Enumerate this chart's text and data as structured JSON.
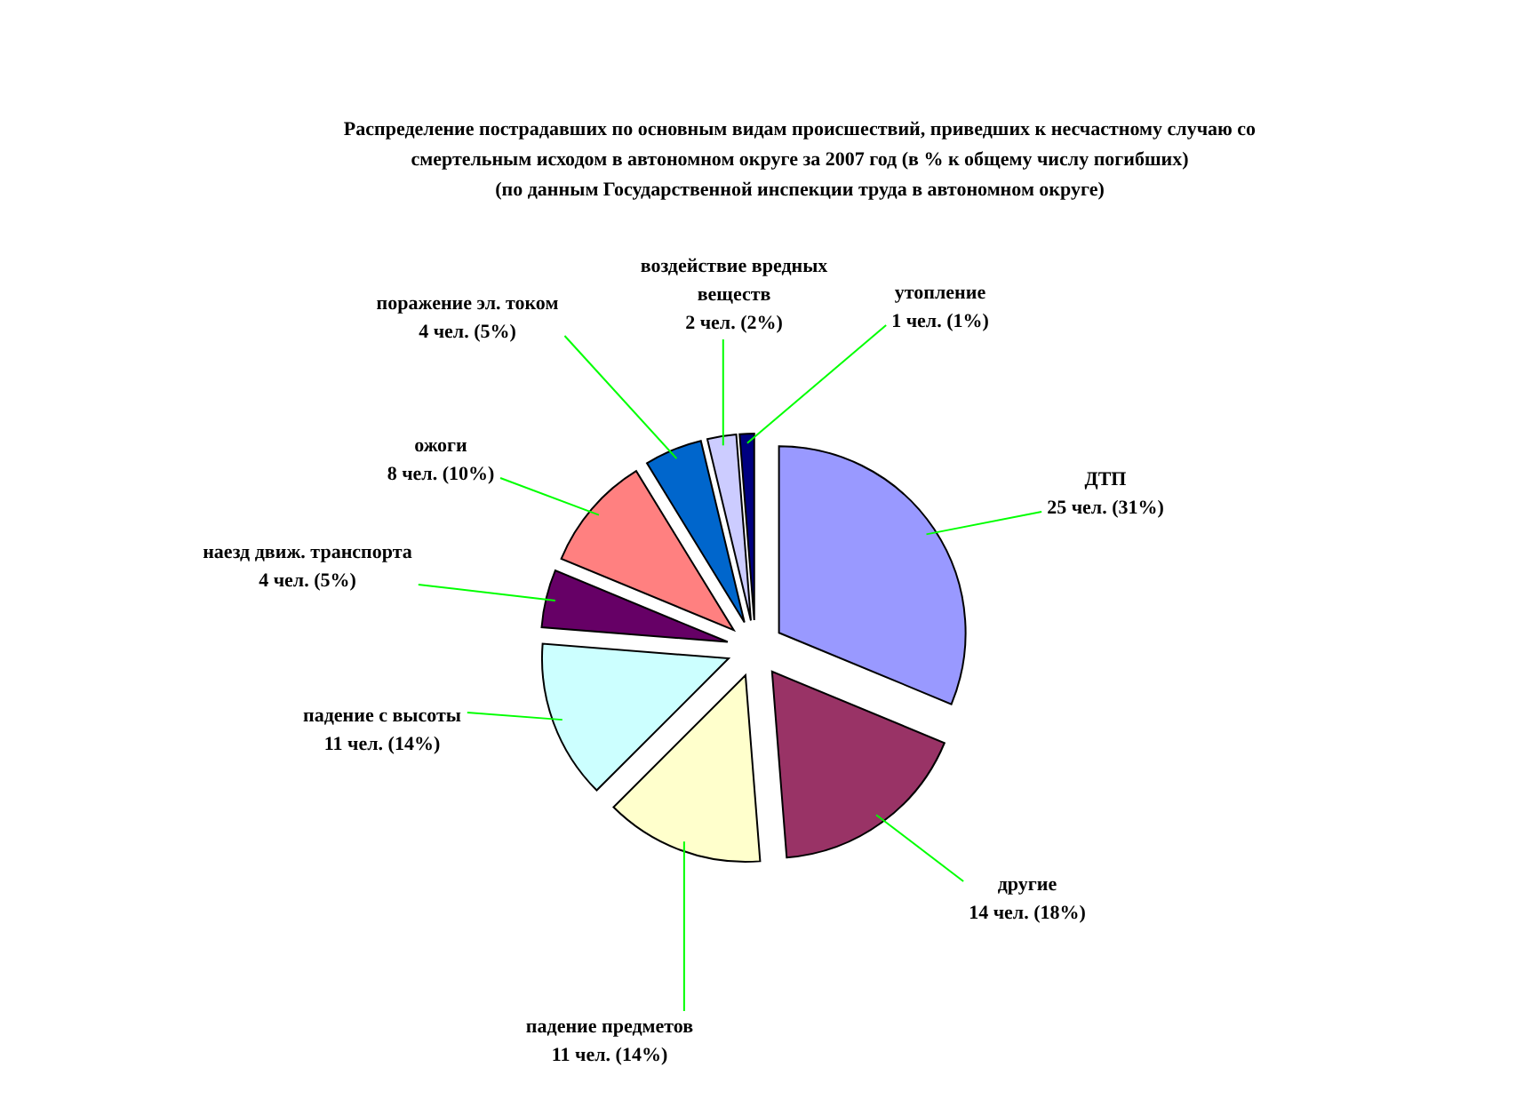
{
  "chart_data": {
    "type": "pie",
    "title": "Распределение пострадавших по основным видам происшествий,  приведших к несчастному случаю со\nсмертельным исходом в автономном округе за 2007 год  (в % к общему числу погибших)\n(по данным Государственной инспекции труда в автономном округе)",
    "categories": [
      "ДТП",
      "другие",
      "падение предметов",
      "падение с высоты",
      "наезд движ. транспорта",
      "ожоги",
      "поражение эл. током",
      "воздействие вредных\nвеществ",
      "утопление"
    ],
    "values": [
      25,
      14,
      11,
      11,
      4,
      8,
      4,
      2,
      1
    ],
    "value_labels": [
      "25 чел. (31%)",
      "14 чел. (18%)",
      "11 чел. (14%)",
      "11 чел. (14%)",
      "4 чел. (5%)",
      "8 чел. (10%)",
      "4 чел. (5%)",
      "2 чел. (2%)",
      "1 чел. (1%)"
    ],
    "colors": [
      "#9999ff",
      "#993366",
      "#ffffcc",
      "#ccffff",
      "#660066",
      "#ff8080",
      "#0066cc",
      "#ccccff",
      "#000080"
    ]
  }
}
